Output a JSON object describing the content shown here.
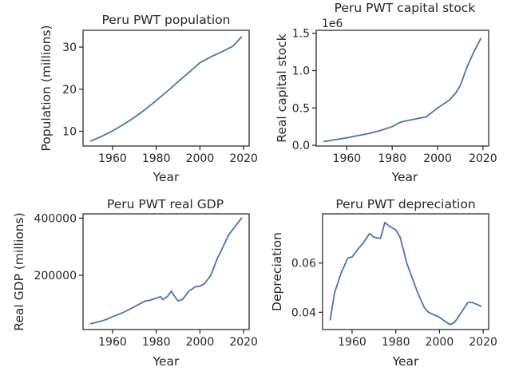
{
  "colors": {
    "line": "#4c72b0",
    "axis": "#262626"
  },
  "chart_data": [
    {
      "id": "population",
      "type": "line",
      "title": "Peru PWT population",
      "xlabel": "Year",
      "ylabel": "Population (millions)",
      "xlim": [
        1946.5,
        2022.5
      ],
      "ylim": [
        6.5,
        34
      ],
      "xticks": [
        1960,
        1980,
        2000,
        2020
      ],
      "yticks": [
        10,
        20,
        30
      ],
      "ytick_labels": [
        "10",
        "20",
        "30"
      ],
      "offset_text": "",
      "series": [
        {
          "x": [
            1950,
            1955,
            1960,
            1965,
            1970,
            1975,
            1980,
            1985,
            1990,
            1995,
            2000,
            2005,
            2010,
            2015,
            2019
          ],
          "values": [
            7.7,
            8.8,
            10.1,
            11.6,
            13.3,
            15.2,
            17.3,
            19.5,
            21.8,
            24.0,
            26.3,
            27.7,
            28.9,
            30.2,
            32.4
          ]
        }
      ]
    },
    {
      "id": "capital",
      "type": "line",
      "title": "Peru PWT capital stock",
      "xlabel": "Year",
      "ylabel": "Real capital stock",
      "xlim": [
        1946.5,
        2022.5
      ],
      "ylim": [
        -10000,
        1540000
      ],
      "xticks": [
        1960,
        1980,
        2000,
        2020
      ],
      "yticks": [
        0,
        500000,
        1000000,
        1500000
      ],
      "ytick_labels": [
        "0.0",
        "0.5",
        "1.0",
        "1.5"
      ],
      "offset_text": "1e6",
      "series": [
        {
          "x": [
            1950,
            1955,
            1960,
            1965,
            1970,
            1975,
            1980,
            1983,
            1985,
            1990,
            1995,
            2000,
            2005,
            2008,
            2010,
            2013,
            2016,
            2019
          ],
          "values": [
            50000,
            75000,
            100000,
            130000,
            160000,
            200000,
            250000,
            300000,
            320000,
            350000,
            380000,
            500000,
            600000,
            700000,
            800000,
            1050000,
            1250000,
            1430000
          ]
        }
      ]
    },
    {
      "id": "gdp",
      "type": "line",
      "title": "Peru PWT real GDP",
      "xlabel": "Year",
      "ylabel": "Real GDP (millions)",
      "xlim": [
        1946.5,
        2022.5
      ],
      "ylim": [
        10000,
        415000
      ],
      "xticks": [
        1960,
        1980,
        2000,
        2020
      ],
      "yticks": [
        200000,
        400000
      ],
      "ytick_labels": [
        "200000",
        "400000"
      ],
      "offset_text": "",
      "series": [
        {
          "x": [
            1950,
            1955,
            1957,
            1960,
            1965,
            1970,
            1975,
            1977,
            1980,
            1982,
            1983,
            1985,
            1987,
            1988,
            1990,
            1992,
            1995,
            1998,
            2000,
            2002,
            2005,
            2008,
            2010,
            2013,
            2016,
            2019
          ],
          "values": [
            30000,
            40000,
            45000,
            55000,
            70000,
            90000,
            110000,
            112000,
            120000,
            125000,
            115000,
            125000,
            145000,
            130000,
            110000,
            115000,
            145000,
            160000,
            162000,
            170000,
            200000,
            260000,
            290000,
            340000,
            370000,
            400000
          ]
        }
      ]
    },
    {
      "id": "depreciation",
      "type": "line",
      "title": "Peru PWT depreciation",
      "xlabel": "Year",
      "ylabel": "Depreciation",
      "xlim": [
        1946.5,
        2022.5
      ],
      "ylim": [
        0.033,
        0.08
      ],
      "xticks": [
        1960,
        1980,
        2000,
        2020
      ],
      "yticks": [
        0.04,
        0.06
      ],
      "ytick_labels": [
        "0.04",
        "0.06"
      ],
      "offset_text": "",
      "series": [
        {
          "x": [
            1950,
            1952,
            1955,
            1958,
            1960,
            1963,
            1965,
            1968,
            1970,
            1973,
            1975,
            1977,
            1980,
            1982,
            1985,
            1990,
            1993,
            1995,
            2000,
            2003,
            2005,
            2007,
            2010,
            2013,
            2015,
            2019
          ],
          "values": [
            0.037,
            0.048,
            0.056,
            0.062,
            0.0625,
            0.066,
            0.068,
            0.072,
            0.0705,
            0.07,
            0.0765,
            0.075,
            0.0735,
            0.0705,
            0.06,
            0.048,
            0.042,
            0.04,
            0.038,
            0.036,
            0.035,
            0.036,
            0.04,
            0.044,
            0.044,
            0.0425
          ]
        }
      ]
    }
  ]
}
